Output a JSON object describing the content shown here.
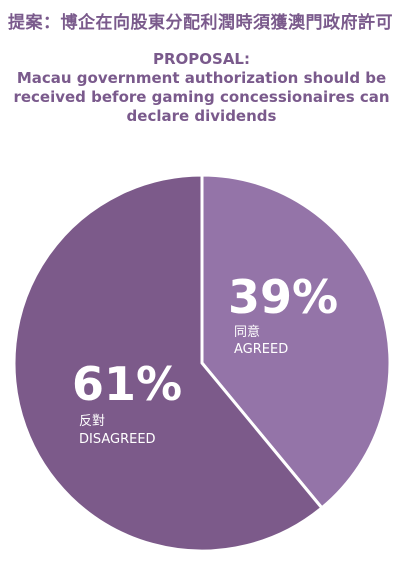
{
  "header": {
    "title": "提案：博企在向股東分配利潤時須獲澳門政府許可",
    "proposal_label": "PROPOSAL:",
    "proposal_lines": [
      "Macau government authorization should be",
      "received before gaming concessionaires can",
      "declare dividends"
    ]
  },
  "chart_data": {
    "type": "pie",
    "title": "提案：博企在向股東分配利潤時須獲澳門政府許可",
    "subtitle": "PROPOSAL: Macau government authorization should be received before gaming concessionaires can declare dividends",
    "slices": [
      {
        "label_zh": "同意",
        "label_en": "AGREED",
        "value": 39,
        "value_label": "39%",
        "color": "#9474a8"
      },
      {
        "label_zh": "反對",
        "label_en": "DISAGREED",
        "value": 61,
        "value_label": "61%",
        "color": "#7c5a8a"
      }
    ]
  }
}
